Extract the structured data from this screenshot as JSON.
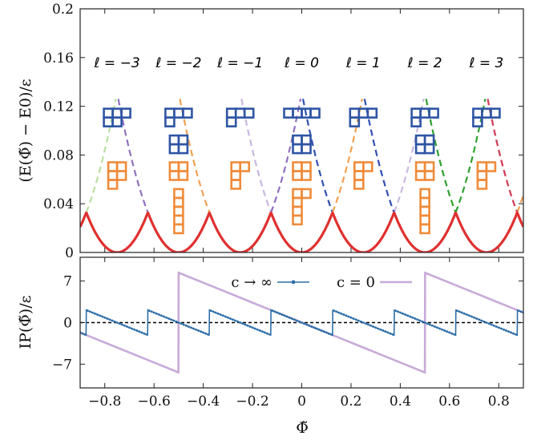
{
  "chart_data": [
    {
      "type": "line",
      "panel": "top",
      "title": "",
      "xlabel": "",
      "ylabel": "(E(Φ̃) − E0)/ε",
      "xlim": [
        -0.9,
        0.9
      ],
      "ylim": [
        0,
        0.2
      ],
      "yticks": [
        "0",
        "0.04",
        "0.08",
        "0.12",
        "0.16",
        "0.2"
      ],
      "grid": false,
      "ground_state_color": "#e03030",
      "parabola_curvature": 2.1,
      "band_labels": [
        {
          "text": "ℓ = −3",
          "center": -0.75
        },
        {
          "text": "ℓ = −2",
          "center": -0.5
        },
        {
          "text": "ℓ = −1",
          "center": -0.25
        },
        {
          "text": "ℓ = 0",
          "center": 0.0
        },
        {
          "text": "ℓ = 1",
          "center": 0.25
        },
        {
          "text": "ℓ = 2",
          "center": 0.5
        },
        {
          "text": "ℓ = 3",
          "center": 0.75
        }
      ],
      "dashed_branches": [
        {
          "center": -1.0,
          "side": "right",
          "color": "#b8e0a0"
        },
        {
          "center": -0.5,
          "side": "left",
          "color": "#9070c0"
        },
        {
          "center": -0.25,
          "side": "left",
          "color": "#f0a050"
        },
        {
          "center": 0.0,
          "side": "left",
          "color": "#c8b8e0"
        },
        {
          "center": 0.25,
          "side": "left",
          "color": "#3050b0"
        },
        {
          "center": -0.25,
          "side": "right",
          "color": "#9070c0"
        },
        {
          "center": 0.0,
          "side": "right",
          "color": "#f0a050"
        },
        {
          "center": 0.25,
          "side": "right",
          "color": "#c8b8e0"
        },
        {
          "center": 0.5,
          "side": "left",
          "color": "#3050b0"
        },
        {
          "center": 0.75,
          "side": "left",
          "color": "#30a030"
        },
        {
          "center": 0.5,
          "side": "right",
          "color": "#30a030"
        },
        {
          "center": 0.75,
          "side": "right",
          "color": "#f0a050"
        },
        {
          "center": 1.0,
          "side": "left",
          "color": "#f0a050"
        },
        {
          "center": 1.0,
          "side": "left",
          "color": "#d04060"
        }
      ],
      "young_diagrams": [
        {
          "center": -0.75,
          "color": "blue",
          "rows": [
            [
              3,
              2
            ]
          ],
          "y": 0.118
        },
        {
          "center": -0.75,
          "color": "orange",
          "rows": [
            [
              2,
              2,
              1
            ]
          ],
          "y": 0.074
        },
        {
          "center": -0.5,
          "color": "blue",
          "rows": [
            [
              3,
              1
            ]
          ],
          "y": 0.118
        },
        {
          "center": -0.5,
          "color": "blue",
          "rows": [
            [
              2,
              2
            ]
          ],
          "y": 0.096
        },
        {
          "center": -0.5,
          "color": "orange",
          "rows": [
            [
              2,
              2
            ]
          ],
          "y": 0.074
        },
        {
          "center": -0.5,
          "color": "orange",
          "rows": [
            [
              1,
              1,
              1,
              1,
              1
            ]
          ],
          "y": 0.052
        },
        {
          "center": -0.25,
          "color": "blue",
          "rows": [
            [
              3,
              1
            ]
          ],
          "y": 0.118
        },
        {
          "center": -0.25,
          "color": "orange",
          "rows": [
            [
              2,
              1,
              1
            ]
          ],
          "y": 0.074
        },
        {
          "center": 0.0,
          "color": "blue",
          "rows": [
            [
              4
            ]
          ],
          "y": 0.118
        },
        {
          "center": 0.0,
          "color": "blue",
          "rows": [
            [
              2,
              2
            ]
          ],
          "y": 0.096
        },
        {
          "center": 0.0,
          "color": "orange",
          "rows": [
            [
              2,
              2
            ]
          ],
          "y": 0.074
        },
        {
          "center": 0.0,
          "color": "orange",
          "rows": [
            [
              2,
              1,
              1,
              1
            ]
          ],
          "y": 0.052
        },
        {
          "center": 0.25,
          "color": "blue",
          "rows": [
            [
              3,
              1
            ]
          ],
          "y": 0.118
        },
        {
          "center": 0.25,
          "color": "orange",
          "rows": [
            [
              2,
              1,
              1
            ]
          ],
          "y": 0.074
        },
        {
          "center": 0.5,
          "color": "blue",
          "rows": [
            [
              3,
              1
            ]
          ],
          "y": 0.118
        },
        {
          "center": 0.5,
          "color": "blue",
          "rows": [
            [
              2,
              2
            ]
          ],
          "y": 0.096
        },
        {
          "center": 0.5,
          "color": "orange",
          "rows": [
            [
              2,
              2
            ]
          ],
          "y": 0.074
        },
        {
          "center": 0.5,
          "color": "orange",
          "rows": [
            [
              1,
              1,
              1,
              1,
              1
            ]
          ],
          "y": 0.052
        },
        {
          "center": 0.75,
          "color": "blue",
          "rows": [
            [
              3,
              1
            ]
          ],
          "y": 0.118
        },
        {
          "center": 0.75,
          "color": "orange",
          "rows": [
            [
              2,
              1,
              1
            ]
          ],
          "y": 0.074
        }
      ]
    },
    {
      "type": "line",
      "panel": "bottom",
      "xlabel": "Φ̃",
      "ylabel": "IP(Φ̃)/ε",
      "xlim": [
        -0.9,
        0.9
      ],
      "ylim": [
        -11,
        11
      ],
      "yticks": [
        "7",
        "0",
        "−7"
      ],
      "xticks": [
        "−0.8",
        "−0.6",
        "−0.4",
        "−0.2",
        "0",
        "0.2",
        "0.4",
        "0.6",
        "0.8"
      ],
      "zero_line": "dashed",
      "series": [
        {
          "name": "c → ∞",
          "color": "#2f6fa8",
          "marker": "dot",
          "period": 0.25,
          "amplitude": 2.1
        },
        {
          "name": "c = 0",
          "color": "#c8aad8",
          "marker": "none",
          "period": 1.0,
          "amplitude": 8.4
        }
      ]
    }
  ]
}
